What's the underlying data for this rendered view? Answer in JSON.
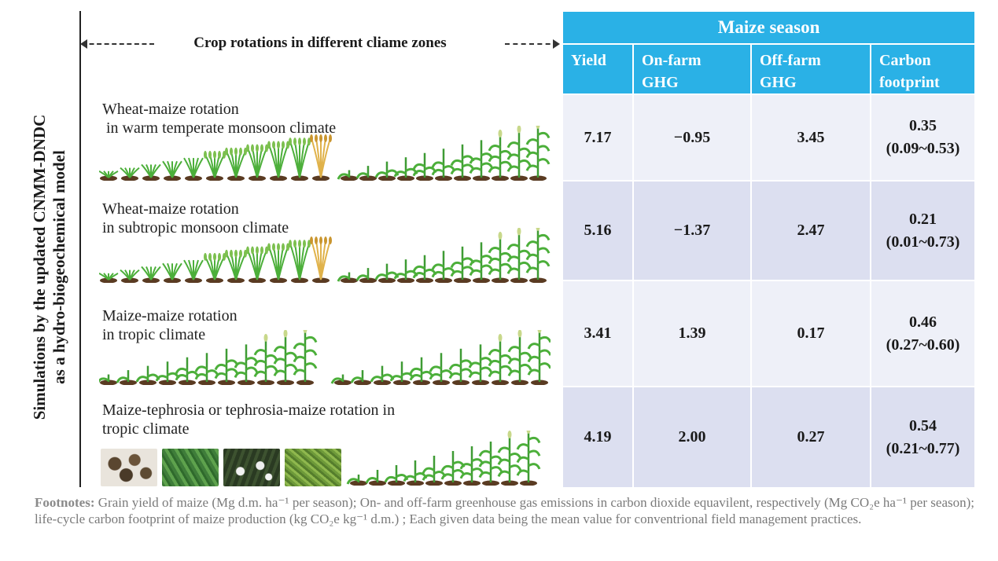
{
  "vertical_title": {
    "line1": "Simulations by the updated CNMM-DNDC",
    "line2": "as a hydro-biogeochemical model"
  },
  "zones_header": "Crop rotations in different cliame zones",
  "rotations": [
    {
      "label_line1": "Wheat-maize rotation",
      "label_line2": " in warm temperate monsoon climate",
      "pattern": "wheat-maize"
    },
    {
      "label_line1": "Wheat-maize rotation",
      "label_line2": "in subtropic monsoon climate",
      "pattern": "wheat-maize"
    },
    {
      "label_line1": "Maize-maize rotation",
      "label_line2": "in tropic climate",
      "pattern": "maize-maize"
    },
    {
      "label_line1": "Maize-tephrosia or tephrosia-maize rotation in",
      "label_line2": "tropic climate",
      "pattern": "tephrosia-maize"
    }
  ],
  "photos": [
    "seeds",
    "leaves",
    "flowers",
    "fern"
  ],
  "table": {
    "season_header": "Maize season",
    "columns": [
      {
        "line1": "Yield",
        "line2": ""
      },
      {
        "line1": "On-farm",
        "line2": "GHG"
      },
      {
        "line1": "Off-farm",
        "line2": "GHG"
      },
      {
        "line1": "Carbon",
        "line2": "footprint"
      }
    ],
    "rows": [
      {
        "yield": "7.17",
        "on_farm": "−0.95",
        "off_farm": "3.45",
        "footprint": "0.35",
        "range": "(0.09~0.53)"
      },
      {
        "yield": "5.16",
        "on_farm": "−1.37",
        "off_farm": "2.47",
        "footprint": "0.21",
        "range": "(0.01~0.73)"
      },
      {
        "yield": "3.41",
        "on_farm": "1.39",
        "off_farm": "0.17",
        "footprint": "0.46",
        "range": "(0.27~0.60)"
      },
      {
        "yield": "4.19",
        "on_farm": "2.00",
        "off_farm": "0.27",
        "footprint": "0.54",
        "range": "(0.21~0.77)"
      }
    ]
  },
  "footnote": {
    "label": "Footnotes:",
    "text": " Grain yield of maize (Mg d.m. ha⁻¹ per season); On- and off-farm greenhouse gas emissions in carbon dioxide equavilent, respectively (Mg CO₂e ha⁻¹ per season); life-cycle carbon footprint of maize production (kg CO₂e kg⁻¹ d.m.) ; Each given data being the mean value for conventrional field management practices."
  },
  "colors": {
    "header_blue": "#2ab1e6",
    "row_light": "#eef0f8",
    "row_dark": "#dcdff0",
    "wheat_green": "#4caf3a",
    "wheat_ripe": "#e0b24a",
    "soil": "#5a3b22"
  }
}
